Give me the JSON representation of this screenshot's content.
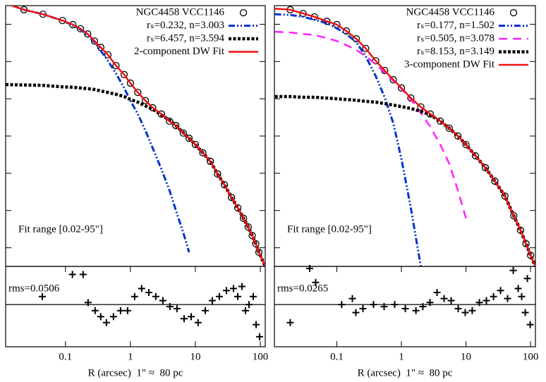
{
  "chart_data": [
    {
      "type": "line",
      "xscale": "log",
      "xlim": [
        0.012,
        119
      ],
      "ylim": [
        -0.5,
        6.5
      ],
      "yticks": [
        0,
        1,
        2,
        3,
        4,
        5,
        6
      ],
      "legend": "upper right",
      "annotation": "Fit range [0.02-95\"]",
      "series": [
        {
          "name": "NGC4458 VCC1146",
          "marker": "circle",
          "color": "#000000",
          "x": [
            0.023,
            0.045,
            0.09,
            0.13,
            0.17,
            0.22,
            0.28,
            0.35,
            0.45,
            0.6,
            0.8,
            1,
            1.3,
            1.7,
            2.2,
            3,
            4,
            5,
            6.5,
            8,
            10,
            13,
            17,
            22,
            28,
            36,
            45,
            55,
            65,
            75,
            85,
            95
          ],
          "values": [
            6.39,
            6.27,
            6.1,
            5.99,
            5.88,
            5.74,
            5.55,
            5.38,
            5.18,
            4.89,
            4.65,
            4.42,
            4.17,
            3.95,
            3.76,
            3.59,
            3.4,
            3.28,
            3.08,
            2.94,
            2.77,
            2.55,
            2.32,
            1.98,
            1.69,
            1.35,
            1.07,
            0.79,
            0.56,
            0.33,
            0.11,
            -0.12
          ]
        },
        {
          "name": "rₛ=0.232, n=3.003",
          "color": "#0033cc",
          "line_style": "dash-dot-dot",
          "x": [
            0.012,
            0.023,
            0.045,
            0.09,
            0.13,
            0.17,
            0.22,
            0.28,
            0.35,
            0.45,
            0.6,
            0.8,
            1,
            1.3,
            1.7,
            2.2,
            3,
            4,
            5,
            6.5,
            8,
            10,
            13,
            17,
            22,
            28,
            36,
            45,
            55,
            65,
            75,
            85,
            95,
            119
          ],
          "values": [
            6.56,
            6.39,
            6.27,
            6.1,
            5.97,
            5.86,
            5.7,
            5.52,
            5.29,
            5.02,
            4.68,
            4.29,
            3.95,
            3.59,
            3.15,
            2.68,
            2.11,
            1.54,
            1.01,
            0.41,
            -0.12,
            null,
            null,
            null,
            null,
            null,
            null,
            null,
            null,
            null,
            null,
            null,
            null,
            null
          ]
        },
        {
          "name": "rₛ=6.457, n=3.594",
          "color": "#000000",
          "line_style": "dotted",
          "x": [
            0.012,
            0.023,
            0.045,
            0.09,
            0.13,
            0.17,
            0.22,
            0.28,
            0.35,
            0.45,
            0.6,
            0.8,
            1,
            1.3,
            1.7,
            2.2,
            3,
            4,
            5,
            6.5,
            8,
            10,
            13,
            17,
            22,
            28,
            36,
            45,
            55,
            65,
            75,
            85,
            95,
            119
          ],
          "values": [
            4.38,
            4.37,
            4.36,
            4.32,
            4.31,
            4.29,
            4.27,
            4.25,
            4.21,
            4.17,
            4.12,
            4.06,
            3.98,
            3.91,
            3.81,
            3.72,
            3.57,
            3.42,
            3.28,
            3.09,
            2.94,
            2.77,
            2.55,
            2.32,
            1.98,
            1.69,
            1.35,
            1.07,
            0.79,
            0.56,
            0.33,
            0.11,
            -0.12,
            -0.5
          ]
        },
        {
          "name": "2-component DW Fit",
          "color": "#ee1111",
          "line_style": "solid",
          "x": [
            0.012,
            0.023,
            0.045,
            0.09,
            0.13,
            0.17,
            0.22,
            0.28,
            0.35,
            0.45,
            0.6,
            0.8,
            1,
            1.3,
            1.7,
            2.2,
            3,
            4,
            5,
            6.5,
            8,
            10,
            13,
            17,
            22,
            28,
            36,
            45,
            55,
            65,
            75,
            85,
            95,
            119
          ],
          "values": [
            6.56,
            6.39,
            6.27,
            6.1,
            5.99,
            5.88,
            5.74,
            5.55,
            5.38,
            5.18,
            4.89,
            4.65,
            4.42,
            4.17,
            3.95,
            3.76,
            3.59,
            3.4,
            3.28,
            3.08,
            2.94,
            2.77,
            2.55,
            2.32,
            1.98,
            1.69,
            1.35,
            1.07,
            0.79,
            0.56,
            0.33,
            0.11,
            -0.12,
            -0.5
          ]
        }
      ]
    },
    {
      "type": "scatter",
      "xscale": "log",
      "xlim": [
        0.012,
        119
      ],
      "ylim": [
        -0.21,
        0.19
      ],
      "hline": 0,
      "xticks": [
        0.1,
        1,
        10,
        100
      ],
      "x_label": "R (arcsec)  1\" ≈  80 pc",
      "annotation": "rms=0.0506",
      "series": [
        {
          "marker": "plus",
          "color": "#000000",
          "x": [
            0.044,
            0.128,
            0.187,
            0.223,
            0.286,
            0.349,
            0.427,
            0.548,
            0.705,
            0.906,
            1.16,
            1.49,
            1.92,
            2.46,
            3.16,
            4.06,
            5.21,
            6.7,
            8.61,
            11.0,
            14.2,
            18.2,
            23.4,
            30.1,
            38.6,
            44.9,
            52.1,
            59.1,
            67.0,
            77.8,
            86.1,
            97.5
          ],
          "values": [
            0.04,
            0.15,
            0.15,
            0.01,
            -0.03,
            -0.06,
            -0.09,
            -0.06,
            -0.03,
            -0.03,
            0.04,
            0.08,
            0.06,
            0.04,
            0.02,
            -0.01,
            -0.02,
            -0.07,
            -0.06,
            -0.09,
            -0.03,
            0.02,
            0.04,
            0.07,
            0.08,
            0.04,
            0.09,
            -0.03,
            0,
            0.04,
            -0.1,
            -0.16
          ]
        }
      ]
    },
    {
      "type": "line",
      "xscale": "log",
      "xlim": [
        0.0108,
        119
      ],
      "ylim": [
        -0.5,
        6.5
      ],
      "yticks": [
        0,
        1,
        2,
        3,
        4,
        5,
        6
      ],
      "legend": "upper right",
      "annotation": "Fit range [0.02-95\"]",
      "series": [
        {
          "name": "NGC4458 VCC1146",
          "marker": "circle",
          "color": "#000000",
          "x": [
            0.019,
            0.03,
            0.045,
            0.07,
            0.1,
            0.14,
            0.2,
            0.28,
            0.4,
            0.55,
            0.75,
            1,
            1.4,
            2,
            2.8,
            4,
            5.5,
            7.5,
            10,
            14,
            20,
            28,
            40,
            55,
            70,
            85,
            100
          ],
          "values": [
            6.39,
            6.29,
            6.2,
            6.08,
            5.99,
            5.82,
            5.61,
            5.35,
            5.02,
            4.76,
            4.51,
            4.29,
            4.02,
            3.78,
            3.59,
            3.4,
            3.21,
            3.0,
            2.77,
            2.47,
            2.15,
            1.79,
            1.39,
            0.86,
            0.47,
            0.11,
            -0.2
          ]
        },
        {
          "name": "rₛ=0.177, n=1.502",
          "color": "#0033cc",
          "line_style": "dash-dot-dot",
          "x": [
            0.011,
            0.019,
            0.03,
            0.045,
            0.07,
            0.1,
            0.14,
            0.2,
            0.28,
            0.4,
            0.55,
            0.75,
            1,
            1.4,
            2,
            2.8,
            4,
            5.5,
            7.5,
            10,
            14,
            20,
            28,
            40,
            55,
            70,
            85,
            100,
            119
          ],
          "values": [
            6.27,
            6.25,
            6.2,
            6.12,
            6.03,
            5.89,
            5.74,
            5.52,
            5.14,
            4.61,
            4.04,
            3.34,
            2.39,
            1.07,
            -0.5,
            null,
            null,
            null,
            null,
            null,
            null,
            null,
            null,
            null,
            null,
            null,
            null,
            null,
            null
          ]
        },
        {
          "name": "rₛ=0.505, n=3.078",
          "color": "#ff22ff",
          "line_style": "dashed",
          "x": [
            0.011,
            0.019,
            0.03,
            0.045,
            0.07,
            0.1,
            0.14,
            0.2,
            0.28,
            0.4,
            0.55,
            0.75,
            1,
            1.4,
            2,
            2.8,
            4,
            5.5,
            7.5,
            10,
            14,
            20,
            28,
            40,
            55,
            70,
            85,
            100,
            119
          ],
          "values": [
            5.8,
            5.78,
            5.74,
            5.71,
            5.63,
            5.55,
            5.44,
            5.31,
            5.14,
            4.93,
            4.7,
            4.48,
            4.27,
            3.98,
            3.62,
            3.25,
            2.77,
            2.26,
            1.54,
            0.79,
            null,
            null,
            null,
            null,
            null,
            null,
            null,
            null,
            null
          ]
        },
        {
          "name": "rₛ=8.153, n=3.149",
          "color": "#000000",
          "line_style": "dotted",
          "x": [
            0.011,
            0.019,
            0.03,
            0.045,
            0.07,
            0.1,
            0.14,
            0.2,
            0.28,
            0.4,
            0.55,
            0.75,
            1,
            1.4,
            2,
            2.8,
            4,
            5.5,
            7.5,
            10,
            14,
            20,
            28,
            40,
            55,
            70,
            85,
            100,
            119
          ],
          "values": [
            4.06,
            4.06,
            4.04,
            4.04,
            4.02,
            4.0,
            3.98,
            3.96,
            3.93,
            3.91,
            3.87,
            3.83,
            3.79,
            3.74,
            3.66,
            3.57,
            3.4,
            3.21,
            3.0,
            2.77,
            2.47,
            2.15,
            1.79,
            1.39,
            0.86,
            0.47,
            0.11,
            -0.2,
            -0.5
          ]
        },
        {
          "name": "3-component DW Fit",
          "color": "#ee1111",
          "line_style": "solid",
          "x": [
            0.011,
            0.019,
            0.03,
            0.045,
            0.07,
            0.1,
            0.14,
            0.2,
            0.28,
            0.4,
            0.55,
            0.75,
            1,
            1.4,
            2,
            2.8,
            4,
            5.5,
            7.5,
            10,
            14,
            20,
            28,
            40,
            55,
            70,
            85,
            100,
            119
          ],
          "values": [
            6.42,
            6.39,
            6.29,
            6.2,
            6.08,
            5.99,
            5.82,
            5.61,
            5.35,
            5.02,
            4.76,
            4.51,
            4.29,
            4.02,
            3.78,
            3.59,
            3.4,
            3.21,
            3.0,
            2.77,
            2.47,
            2.15,
            1.79,
            1.39,
            0.86,
            0.47,
            0.11,
            -0.2,
            -0.5
          ]
        }
      ]
    },
    {
      "type": "scatter",
      "xscale": "log",
      "xlim": [
        0.0108,
        119
      ],
      "ylim": [
        -0.21,
        0.19
      ],
      "hline": 0,
      "xticks": [
        0.1,
        1,
        10,
        100
      ],
      "x_label": "R (arcsec)  1\" ≈  80 pc",
      "annotation": "rms=0.0265",
      "series": [
        {
          "marker": "plus",
          "color": "#000000",
          "x": [
            0.019,
            0.038,
            0.047,
            0.119,
            0.174,
            0.197,
            0.254,
            0.37,
            0.54,
            0.787,
            1.15,
            1.68,
            2.15,
            2.77,
            3.56,
            4.58,
            5.89,
            7.58,
            9.74,
            12.5,
            16.1,
            20.7,
            26.7,
            34.3,
            44.1,
            54.0,
            64.4,
            72.9,
            82.8,
            89.3,
            98.8
          ],
          "values": [
            -0.09,
            0.18,
            0.11,
            0,
            0.03,
            -0.04,
            -0.02,
            0,
            -0.01,
            0,
            -0.02,
            -0.03,
            -0.01,
            0.01,
            0.06,
            0.03,
            0.02,
            -0.02,
            -0.04,
            -0.03,
            0.01,
            0.02,
            0.04,
            0.07,
            0.03,
            0.17,
            0.08,
            0.04,
            -0.04,
            0.13,
            -0.1
          ]
        }
      ]
    }
  ]
}
